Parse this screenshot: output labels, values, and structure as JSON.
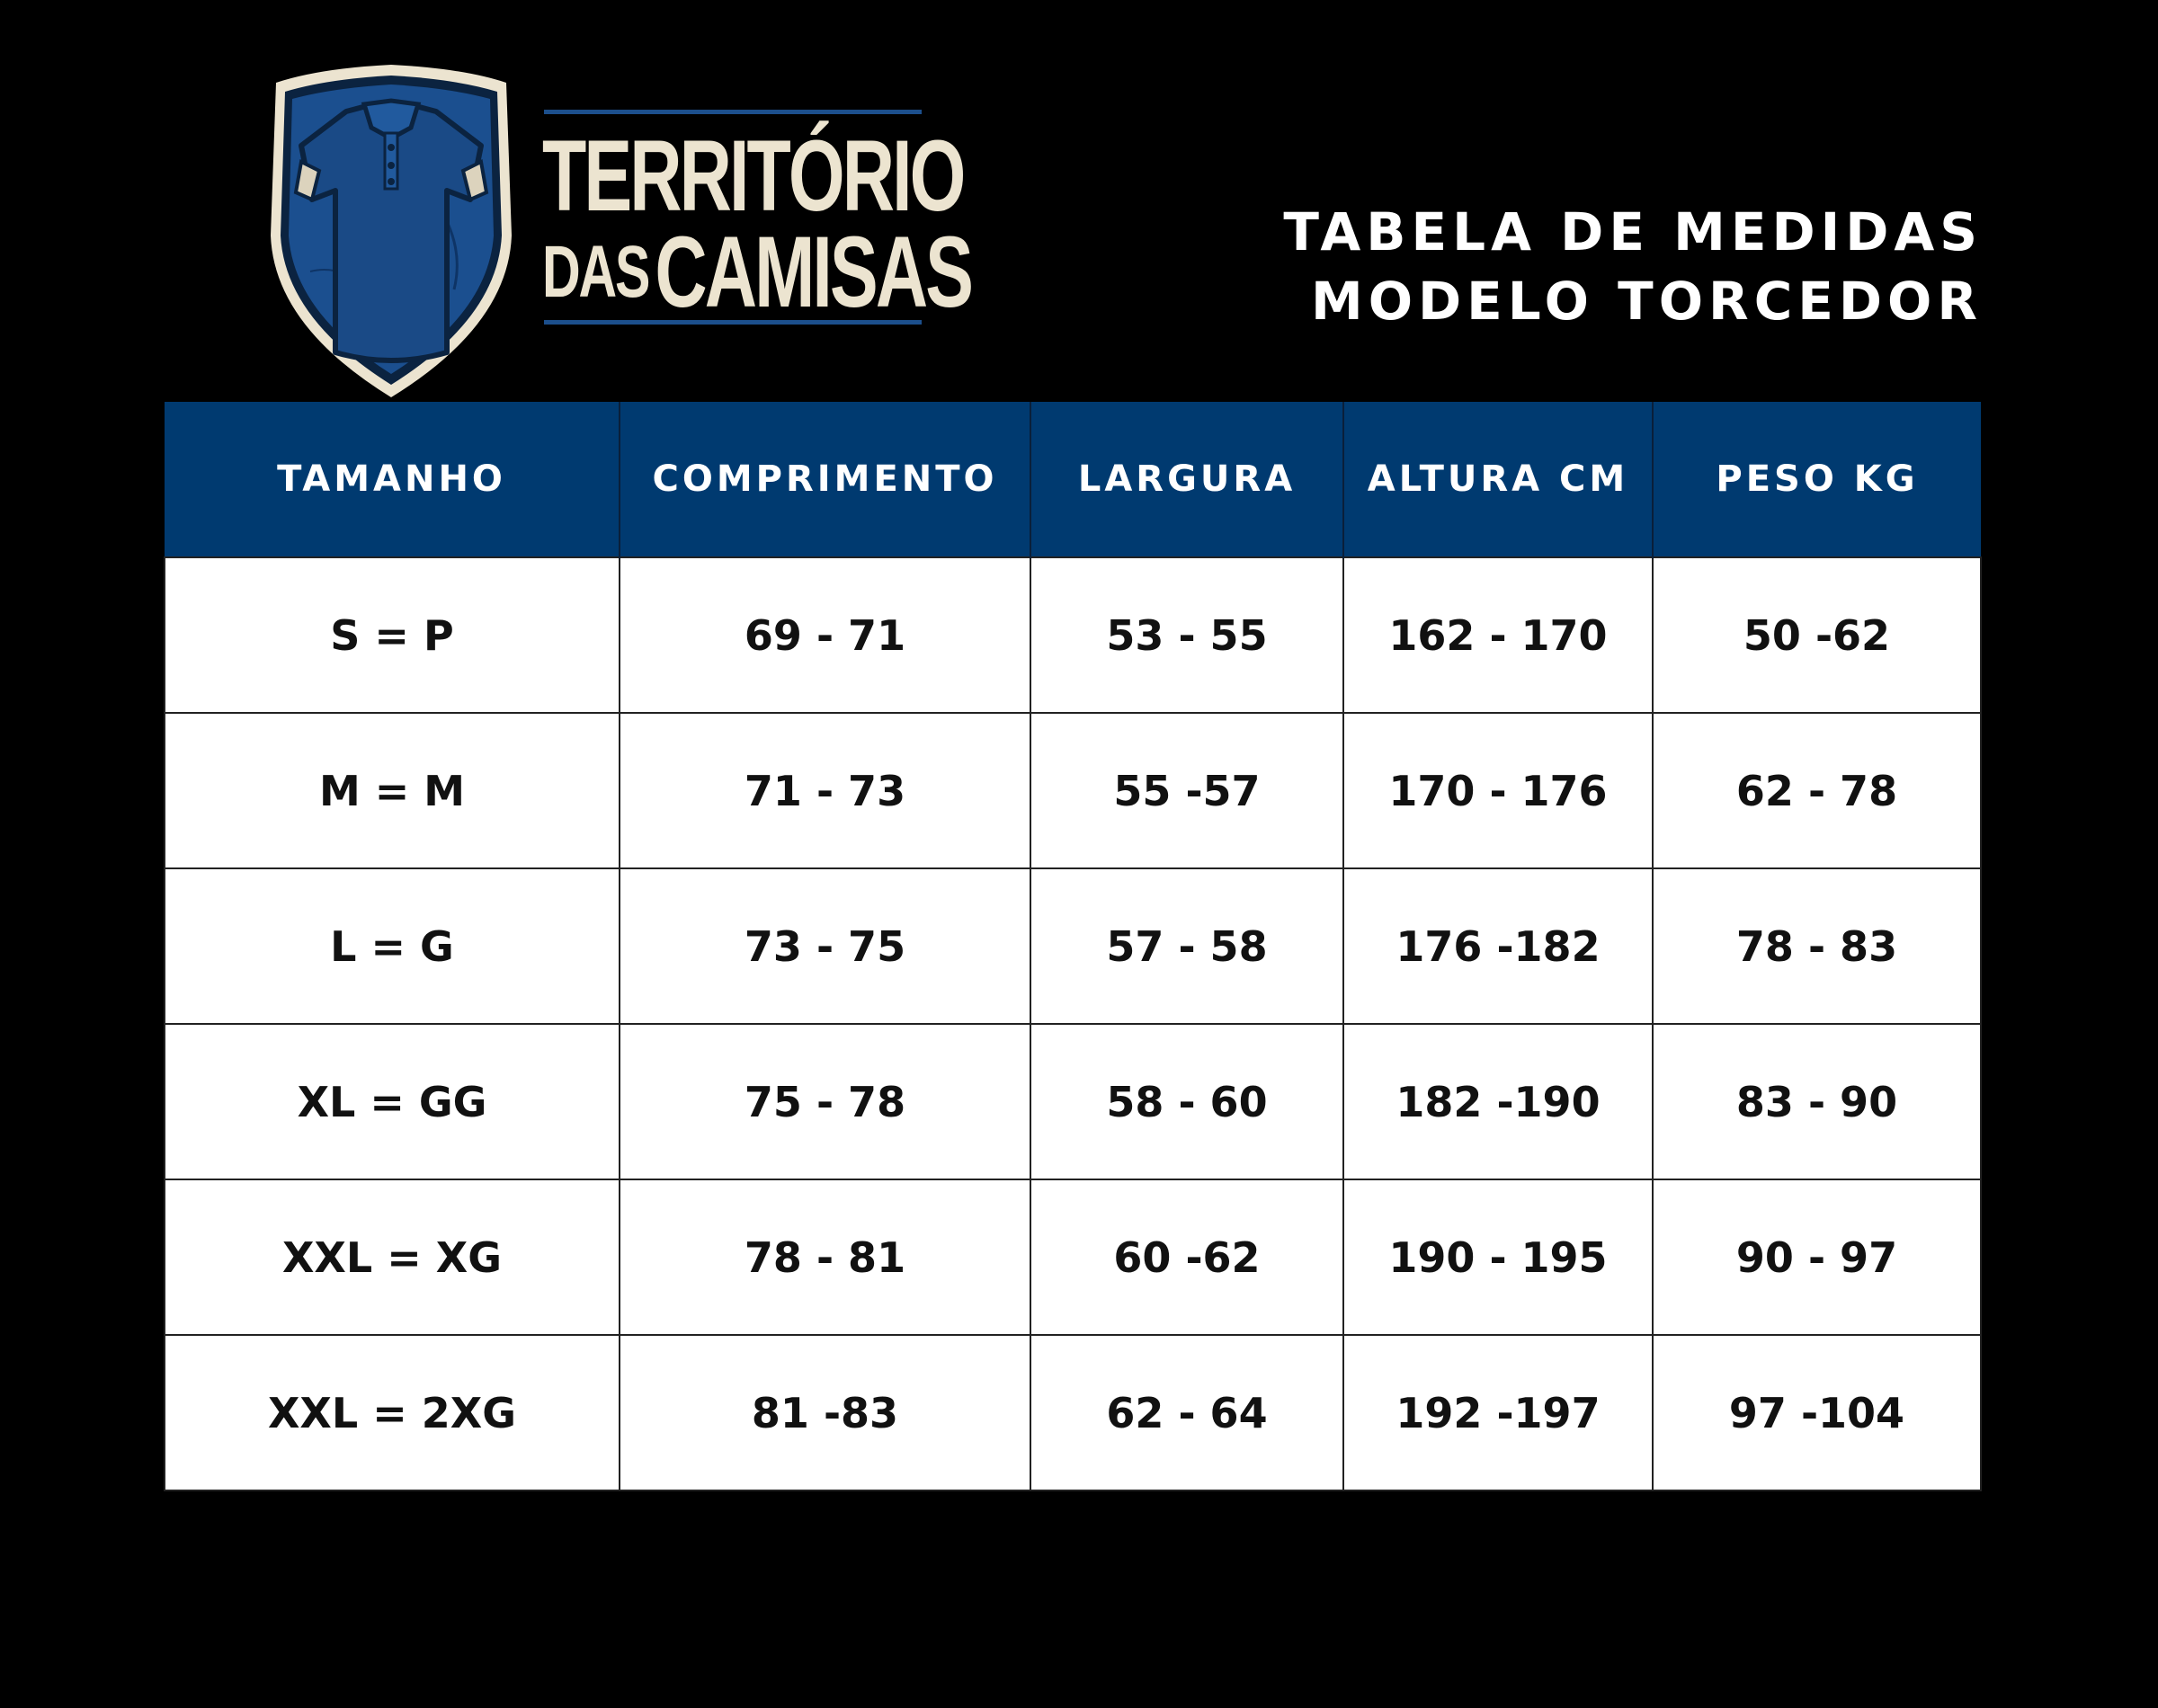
{
  "brand": {
    "line1": "TERRITÓRIO",
    "line2_small": "DAS",
    "line2_big": "CAMISAS",
    "logo_icon": "shirt-shield-logo",
    "colors": {
      "shield_blue": "#1b4f8f",
      "shield_dark": "#0b2340",
      "shield_outline": "#ece4d0",
      "wordmark": "#ece4d0"
    }
  },
  "title": {
    "line1": "TABELA DE MEDIDAS",
    "line2": "MODELO TORCEDOR"
  },
  "table": {
    "header_color": "#003a70",
    "headers": [
      "TAMANHO",
      "COMPRIMENTO",
      "LARGURA",
      "ALTURA CM",
      "PESO KG"
    ],
    "rows": [
      [
        "S = P",
        "69 - 71",
        "53 - 55",
        "162 - 170",
        "50 -62"
      ],
      [
        "M = M",
        "71 - 73",
        "55 -57",
        "170 - 176",
        "62 - 78"
      ],
      [
        "L = G",
        "73 - 75",
        "57 - 58",
        "176 -182",
        "78 - 83"
      ],
      [
        "XL = GG",
        "75 - 78",
        "58 - 60",
        "182 -190",
        "83 - 90"
      ],
      [
        "XXL = XG",
        "78 - 81",
        "60 -62",
        "190 - 195",
        "90 - 97"
      ],
      [
        "XXL = 2XG",
        "81 -83",
        "62 - 64",
        "192 -197",
        "97 -104"
      ]
    ]
  }
}
